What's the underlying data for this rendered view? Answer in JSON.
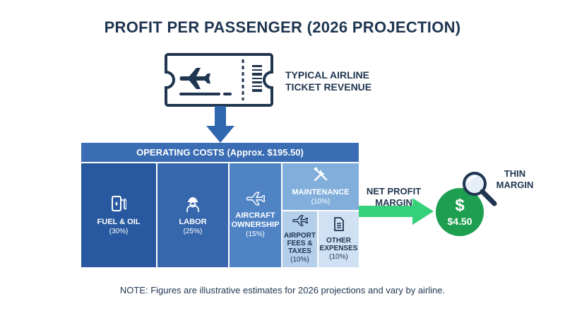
{
  "title": "PROFIT PER PASSENGER (2026 PROJECTION)",
  "ticket": {
    "label_line1": "TYPICAL AIRLINE",
    "label_line2": "TICKET REVENUE",
    "icon": "ticket-icon"
  },
  "operating_costs": {
    "header": "OPERATING COSTS (Approx. $195.50)",
    "items": [
      {
        "label": "FUEL & OIL",
        "pct": "(30%)",
        "icon": "fuel-pump-icon",
        "share": 30,
        "color": "#2859a0"
      },
      {
        "label": "LABOR",
        "pct": "(25%)",
        "icon": "worker-icon",
        "share": 25,
        "color": "#3667ad"
      },
      {
        "label_line1": "AIRCRAFT",
        "label_line2": "OWNERSHIP",
        "pct": "(15%)",
        "icon": "airplane-icon",
        "share": 15,
        "color": "#4f83c4"
      },
      {
        "label": "MAINTENANCE",
        "pct": "(10%)",
        "icon": "tools-icon",
        "share": 10,
        "color": "#82aedb"
      },
      {
        "label_line1": "AIRPORT",
        "label_line2": "FEES &",
        "label_line3": "TAXES",
        "pct": "(10%)",
        "icon": "airplane-icon",
        "share": 10,
        "color": "#b3cfea"
      },
      {
        "label_line1": "OTHER",
        "label_line2": "EXPENSES",
        "pct": "(10%)",
        "icon": "document-icon",
        "share": 10,
        "color": "#cfe1f3"
      }
    ]
  },
  "net_profit": {
    "label_line1": "NET PROFIT",
    "label_line2": "MARGIN",
    "symbol": "$",
    "amount": "$4.50",
    "color": "#1e9e50",
    "annotation_line1": "THIN",
    "annotation_line2": "MARGIN"
  },
  "note": "NOTE: Figures are illustrative estimates for 2026 projections and vary by airline."
}
